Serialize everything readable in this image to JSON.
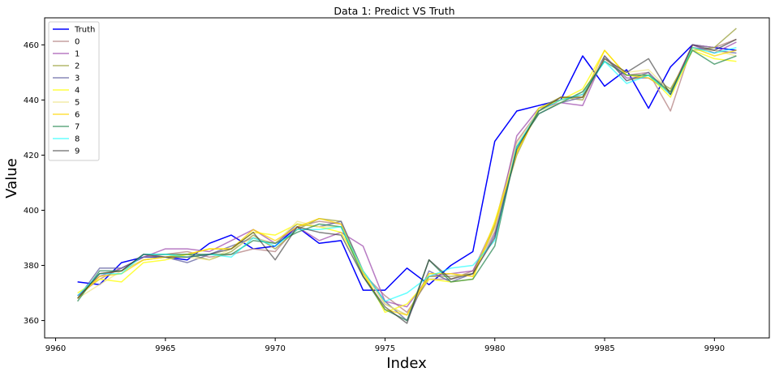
{
  "chart_data": {
    "type": "line",
    "title": "Data 1: Predict VS Truth",
    "xlabel": "Index",
    "ylabel": "Value",
    "xlim": [
      9959.5,
      9992.5
    ],
    "ylim": [
      353.7,
      469.8
    ],
    "xticks": [
      9960,
      9965,
      9970,
      9975,
      9980,
      9985,
      9990
    ],
    "yticks": [
      360,
      380,
      400,
      420,
      440,
      460
    ],
    "legend_position": "top-left",
    "grid": false,
    "x": [
      9961,
      9962,
      9963,
      9964,
      9965,
      9966,
      9967,
      9968,
      9969,
      9970,
      9971,
      9972,
      9973,
      9974,
      9975,
      9976,
      9977,
      9978,
      9979,
      9980,
      9981,
      9982,
      9983,
      9984,
      9985,
      9986,
      9987,
      9988,
      9989,
      9990,
      9991
    ],
    "series": [
      {
        "name": "Truth",
        "color": "#0000ff",
        "opacity": 1.0,
        "values": [
          374,
          373,
          381,
          383,
          383,
          382,
          388,
          391,
          386,
          387,
          394,
          388,
          389,
          371,
          371,
          379,
          373,
          380,
          385,
          425,
          436,
          438,
          440,
          456,
          445,
          451,
          437,
          452,
          460,
          459,
          458
        ]
      },
      {
        "name": "0",
        "color": "#bc8f8f",
        "opacity": 0.85,
        "values": [
          369,
          375,
          379,
          383,
          384,
          385,
          383,
          384,
          386,
          385,
          394,
          396,
          395,
          377,
          369,
          363,
          375,
          375,
          378,
          395,
          425,
          436,
          440,
          442,
          455,
          449,
          450,
          436,
          460,
          459,
          462
        ]
      },
      {
        "name": "1",
        "color": "#a050b0",
        "opacity": 0.75,
        "values": [
          369,
          376,
          379,
          383,
          386,
          386,
          385,
          389,
          393,
          388,
          394,
          389,
          392,
          387,
          367,
          365,
          376,
          377,
          378,
          392,
          427,
          437,
          439,
          438,
          456,
          448,
          448,
          443,
          460,
          457,
          461
        ]
      },
      {
        "name": "2",
        "color": "#9aa03c",
        "opacity": 0.75,
        "values": [
          368,
          377,
          378,
          382,
          383,
          384,
          382,
          385,
          391,
          386,
          393,
          397,
          396,
          378,
          366,
          362,
          376,
          376,
          377,
          394,
          420,
          437,
          441,
          440,
          456,
          447,
          449,
          444,
          458,
          459,
          466
        ]
      },
      {
        "name": "3",
        "color": "#6060a0",
        "opacity": 0.75,
        "values": [
          368,
          379,
          379,
          383,
          383,
          381,
          384,
          387,
          390,
          388,
          395,
          394,
          396,
          378,
          367,
          360,
          378,
          374,
          377,
          391,
          423,
          435,
          439,
          441,
          456,
          447,
          450,
          442,
          459,
          458,
          457
        ]
      },
      {
        "name": "4",
        "color": "#ffff00",
        "opacity": 0.75,
        "values": [
          370,
          375,
          374,
          381,
          382,
          384,
          386,
          386,
          392,
          391,
          395,
          394,
          392,
          378,
          363,
          366,
          375,
          374,
          375,
          396,
          421,
          437,
          440,
          444,
          458,
          449,
          449,
          441,
          458,
          455,
          454
        ]
      },
      {
        "name": "5",
        "color": "#f0e68c",
        "opacity": 0.75,
        "values": [
          368,
          373,
          378,
          382,
          383,
          383,
          382,
          386,
          390,
          388,
          396,
          394,
          394,
          378,
          366,
          362,
          377,
          377,
          376,
          393,
          424,
          436,
          439,
          443,
          455,
          450,
          451,
          443,
          458,
          458,
          456
        ]
      },
      {
        "name": "6",
        "color": "#ffd700",
        "opacity": 0.75,
        "values": [
          368,
          376,
          377,
          382,
          383,
          384,
          386,
          386,
          393,
          389,
          394,
          397,
          395,
          377,
          364,
          362,
          377,
          377,
          376,
          395,
          421,
          436,
          441,
          441,
          458,
          449,
          448,
          443,
          459,
          456,
          458
        ]
      },
      {
        "name": "7",
        "color": "#2e8b57",
        "opacity": 0.75,
        "values": [
          367,
          378,
          378,
          384,
          384,
          384,
          384,
          384,
          389,
          388,
          392,
          395,
          394,
          376,
          364,
          360,
          382,
          374,
          375,
          387,
          423,
          435,
          439,
          443,
          454,
          449,
          449,
          443,
          458,
          453,
          456
        ]
      },
      {
        "name": "8",
        "color": "#00ffff",
        "opacity": 0.6,
        "values": [
          369,
          377,
          377,
          384,
          384,
          383,
          384,
          383,
          390,
          387,
          393,
          393,
          394,
          378,
          367,
          370,
          376,
          379,
          380,
          389,
          423,
          436,
          440,
          442,
          454,
          446,
          449,
          442,
          459,
          457,
          459
        ]
      },
      {
        "name": "9",
        "color": "#303030",
        "opacity": 0.6,
        "values": [
          368,
          377,
          378,
          384,
          383,
          383,
          384,
          386,
          392,
          382,
          394,
          392,
          391,
          376,
          365,
          359,
          382,
          375,
          377,
          390,
          422,
          436,
          441,
          441,
          455,
          450,
          455,
          442,
          460,
          458,
          462
        ]
      }
    ]
  }
}
